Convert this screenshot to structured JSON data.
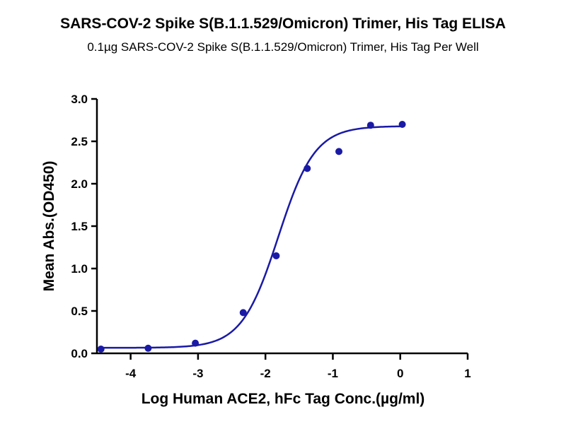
{
  "chart_data": {
    "type": "scatter",
    "title": "SARS-COV-2 Spike S(B.1.1.529/Omicron) Trimer, His Tag ELISA",
    "subtitle": "0.1µg SARS-COV-2 Spike S(B.1.1.529/Omicron) Trimer, His Tag Per Well",
    "xlabel": "Log Human ACE2, hFc Tag Conc.(µg/ml)",
    "ylabel": "Mean Abs.(OD450)",
    "xlim": [
      -4.5,
      1
    ],
    "ylim": [
      0,
      3.0
    ],
    "x_ticks": [
      "-4",
      "-3",
      "-2",
      "-1",
      "0",
      "1"
    ],
    "y_ticks": [
      "0.0",
      "0.5",
      "1.0",
      "1.5",
      "2.0",
      "2.5",
      "3.0"
    ],
    "grid": false,
    "series": [
      {
        "color": "#1a1aa6",
        "points": [
          {
            "x": -4.44,
            "y": 0.05
          },
          {
            "x": -3.74,
            "y": 0.06
          },
          {
            "x": -3.04,
            "y": 0.12
          },
          {
            "x": -2.33,
            "y": 0.48
          },
          {
            "x": -1.84,
            "y": 1.15
          },
          {
            "x": -1.38,
            "y": 2.18
          },
          {
            "x": -0.91,
            "y": 2.38
          },
          {
            "x": -0.44,
            "y": 2.69
          },
          {
            "x": 0.03,
            "y": 2.7
          }
        ],
        "fit": {
          "model": "4PL",
          "bottom": 0.065,
          "top": 2.68,
          "logEC50": -1.81,
          "hillslope": 1.6
        }
      }
    ]
  }
}
